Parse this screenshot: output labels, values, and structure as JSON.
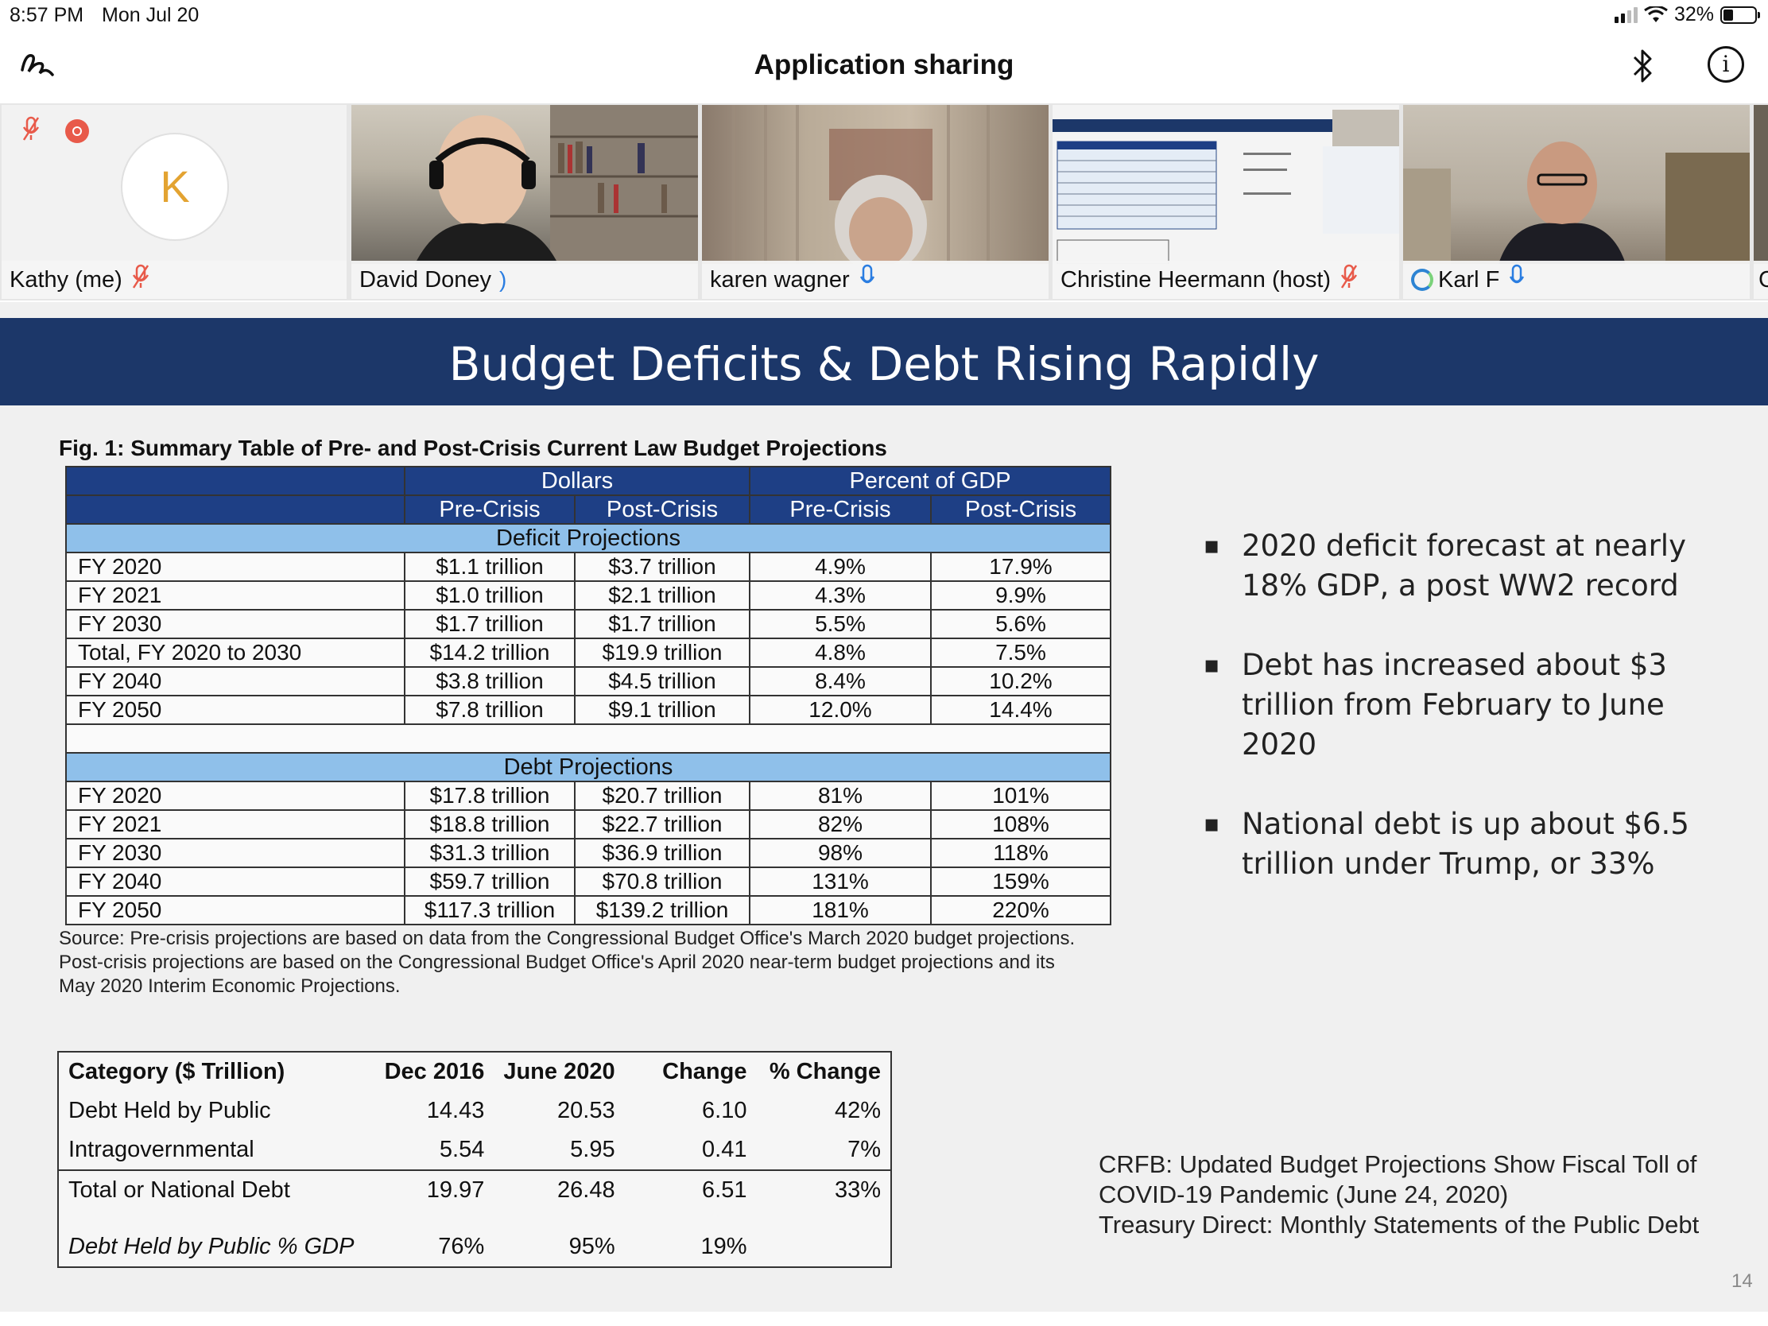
{
  "status_bar": {
    "time": "8:57 PM",
    "date": "Mon Jul 20",
    "battery": "32%"
  },
  "header": {
    "title": "Application sharing"
  },
  "participants": [
    {
      "name": "Kathy (me)",
      "avatar_letter": "K",
      "mic": "muted"
    },
    {
      "name": "David Doney",
      "mic": "speaking"
    },
    {
      "name": "karen wagner",
      "mic": "on"
    },
    {
      "name": "Christine Heermann (host)",
      "mic": "muted"
    },
    {
      "name": "Karl F",
      "mic": "on"
    },
    {
      "name": "C"
    }
  ],
  "slide": {
    "title": "Budget Deficits & Debt Rising Rapidly",
    "fig_caption": "Fig. 1: Summary Table of Pre- and Post-Crisis Current Law Budget Projections",
    "projection_table": {
      "group_headers": [
        "Dollars",
        "Percent of GDP"
      ],
      "sub_headers": [
        "Pre-Crisis",
        "Post-Crisis",
        "Pre-Crisis",
        "Post-Crisis"
      ],
      "deficit_title": "Deficit Projections",
      "deficit_rows": [
        [
          "FY 2020",
          "$1.1 trillion",
          "$3.7 trillion",
          "4.9%",
          "17.9%"
        ],
        [
          "FY 2021",
          "$1.0 trillion",
          "$2.1 trillion",
          "4.3%",
          "9.9%"
        ],
        [
          "FY 2030",
          "$1.7 trillion",
          "$1.7 trillion",
          "5.5%",
          "5.6%"
        ],
        [
          "Total, FY 2020 to 2030",
          "$14.2 trillion",
          "$19.9 trillion",
          "4.8%",
          "7.5%"
        ],
        [
          "FY 2040",
          "$3.8 trillion",
          "$4.5 trillion",
          "8.4%",
          "10.2%"
        ],
        [
          "FY 2050",
          "$7.8 trillion",
          "$9.1 trillion",
          "12.0%",
          "14.4%"
        ]
      ],
      "debt_title": "Debt Projections",
      "debt_rows": [
        [
          "FY 2020",
          "$17.8 trillion",
          "$20.7 trillion",
          "81%",
          "101%"
        ],
        [
          "FY 2021",
          "$18.8 trillion",
          "$22.7 trillion",
          "82%",
          "108%"
        ],
        [
          "FY 2030",
          "$31.3 trillion",
          "$36.9 trillion",
          "98%",
          "118%"
        ],
        [
          "FY 2040",
          "$59.7 trillion",
          "$70.8 trillion",
          "131%",
          "159%"
        ],
        [
          "FY 2050",
          "$117.3 trillion",
          "$139.2 trillion",
          "181%",
          "220%"
        ]
      ]
    },
    "source_note": "Source: Pre-crisis projections are based on data from the Congressional Budget Office's March 2020 budget projections. Post-crisis projections are based on the Congressional Budget Office's April 2020 near-term budget projections and its May 2020 Interim Economic Projections.",
    "bullets": [
      "2020 deficit forecast at nearly 18% GDP, a post WW2 record",
      "Debt has increased about $3 trillion from February to June 2020",
      "National debt is up about $6.5 trillion under Trump, or 33%"
    ],
    "debt_table": {
      "headers": [
        "Category  ($ Trillion)",
        "Dec 2016",
        "June 2020",
        "Change",
        "% Change"
      ],
      "rows": [
        [
          "Debt Held by Public",
          "14.43",
          "20.53",
          "6.10",
          "42%"
        ],
        [
          "Intragovernmental",
          "5.54",
          "5.95",
          "0.41",
          "7%"
        ],
        [
          "Total or National Debt",
          "19.97",
          "26.48",
          "6.51",
          "33%"
        ]
      ],
      "gdp_row": [
        "Debt Held by Public % GDP",
        "76%",
        "95%",
        "19%",
        ""
      ]
    },
    "sources": [
      "CRFB:  Updated Budget Projections Show Fiscal Toll of COVID-19 Pandemic (June 24, 2020)",
      "Treasury Direct:  Monthly Statements of the Public Debt"
    ],
    "page_number": "14"
  }
}
